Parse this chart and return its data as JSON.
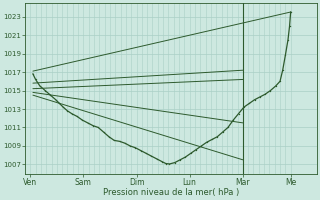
{
  "bg_color": "#cde8e0",
  "grid_color": "#aacfc6",
  "line_color": "#2d5a2d",
  "yticks": [
    1007,
    1009,
    1011,
    1013,
    1015,
    1017,
    1019,
    1021,
    1023
  ],
  "ylim": [
    1006.0,
    1024.5
  ],
  "xlim": [
    -0.1,
    5.4
  ],
  "xtick_labels": [
    "Ven",
    "Sam",
    "Dim",
    "Lun",
    "Mar",
    "Me"
  ],
  "xtick_positions": [
    0.0,
    1.0,
    2.0,
    3.0,
    4.0,
    4.9
  ],
  "xlabel": "Pression niveau de la mer( hPa )",
  "straight_lines": [
    [
      [
        0.05,
        4.9
      ],
      [
        1017.1,
        1023.5
      ]
    ],
    [
      [
        0.05,
        4.0
      ],
      [
        1015.8,
        1017.2
      ]
    ],
    [
      [
        0.05,
        4.0
      ],
      [
        1015.2,
        1016.2
      ]
    ],
    [
      [
        0.05,
        4.0
      ],
      [
        1014.8,
        1011.5
      ]
    ],
    [
      [
        0.05,
        4.0
      ],
      [
        1014.5,
        1007.5
      ]
    ]
  ],
  "curvy_x": [
    0.05,
    0.1,
    0.18,
    0.28,
    0.38,
    0.48,
    0.55,
    0.62,
    0.7,
    0.78,
    0.88,
    0.98,
    1.08,
    1.18,
    1.28,
    1.38,
    1.48,
    1.58,
    1.68,
    1.78,
    1.88,
    1.98,
    2.08,
    2.18,
    2.28,
    2.38,
    2.48,
    2.55,
    2.62,
    2.72,
    2.82,
    2.92,
    3.02,
    3.12,
    3.22,
    3.32,
    3.42,
    3.52,
    3.62,
    3.72,
    3.82,
    3.92,
    4.02,
    4.12,
    4.22,
    4.32,
    4.42,
    4.52,
    4.62,
    4.7,
    4.75,
    4.8,
    4.85,
    4.88,
    4.9
  ],
  "curvy_y": [
    1016.8,
    1016.2,
    1015.5,
    1015.0,
    1014.5,
    1014.0,
    1013.6,
    1013.2,
    1012.8,
    1012.5,
    1012.2,
    1011.8,
    1011.5,
    1011.2,
    1011.0,
    1010.5,
    1010.0,
    1009.6,
    1009.5,
    1009.3,
    1009.0,
    1008.8,
    1008.5,
    1008.2,
    1007.9,
    1007.6,
    1007.3,
    1007.1,
    1007.05,
    1007.2,
    1007.5,
    1007.8,
    1008.2,
    1008.6,
    1009.0,
    1009.4,
    1009.7,
    1010.0,
    1010.5,
    1011.0,
    1011.8,
    1012.5,
    1013.2,
    1013.6,
    1014.0,
    1014.3,
    1014.6,
    1015.0,
    1015.5,
    1016.0,
    1017.2,
    1018.8,
    1020.5,
    1022.0,
    1023.5
  ],
  "vline_positions": [
    0.0,
    1.0,
    2.0,
    3.0,
    4.0,
    4.9
  ]
}
